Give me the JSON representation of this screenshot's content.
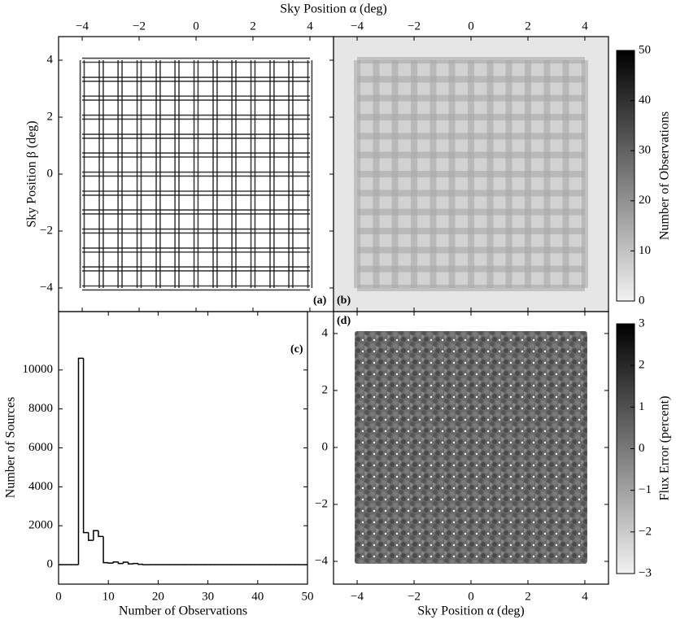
{
  "chart_data": [
    {
      "type": "grid",
      "panel_label": "(a)",
      "x_label": "Sky Position α (deg)",
      "y_label": "Sky Position β (deg)",
      "xlim": [
        -4.83,
        4.83
      ],
      "ylim": [
        -4.83,
        4.83
      ],
      "xticks": [
        {
          "value": -4,
          "label": "−4"
        },
        {
          "value": -2,
          "label": "−2"
        },
        0,
        2,
        4
      ],
      "yticks": [
        {
          "value": -4,
          "label": "−4"
        },
        {
          "value": -2,
          "label": "−2"
        },
        0,
        2,
        4
      ],
      "grid_lines": [
        -4,
        -3.33,
        -2.67,
        -2,
        -1.33,
        -0.67,
        0,
        0.67,
        1.33,
        2,
        2.67,
        3.33,
        4
      ]
    },
    {
      "type": "heatmap",
      "panel_label": "(b)",
      "xlim": [
        -4.83,
        4.83
      ],
      "ylim": [
        -4.83,
        4.83
      ],
      "xticks": [
        {
          "value": -4,
          "label": "−4"
        },
        {
          "value": -2,
          "label": "−2"
        },
        0,
        2,
        4
      ],
      "colorbar": {
        "label": "Number of Observations",
        "lim": [
          0,
          50
        ],
        "ticks": [
          0,
          10,
          20,
          30,
          40,
          50
        ]
      }
    },
    {
      "type": "histogram",
      "panel_label": "(c)",
      "x_label": "Number of Observations",
      "y_label": "Number of Sources",
      "xlim": [
        0,
        50
      ],
      "ylim": [
        -1000,
        13000
      ],
      "xticks": [
        0,
        10,
        20,
        30,
        40,
        50
      ],
      "yticks": [
        0,
        2000,
        4000,
        6000,
        8000,
        10000
      ],
      "bins": [
        0,
        1,
        2,
        3,
        4,
        5,
        6,
        7,
        8,
        9,
        10,
        11,
        12,
        13,
        14,
        15,
        16,
        17,
        18,
        19,
        20,
        21,
        22,
        23,
        24,
        25,
        26,
        27,
        28,
        29,
        30,
        31,
        32,
        33,
        34,
        35,
        36,
        37,
        38,
        39,
        40,
        41,
        42,
        43,
        44,
        45,
        46,
        47,
        48,
        49,
        50
      ],
      "values": [
        0,
        0,
        0,
        0,
        10600,
        1650,
        1250,
        1750,
        1450,
        100,
        80,
        140,
        60,
        130,
        40,
        60,
        20,
        0,
        0,
        0,
        0,
        0,
        0,
        0,
        0,
        0,
        0,
        0,
        0,
        0,
        0,
        0,
        0,
        0,
        0,
        0,
        0,
        0,
        0,
        0,
        0,
        0,
        0,
        0,
        0,
        0,
        0,
        0,
        0,
        0
      ]
    },
    {
      "type": "scatter",
      "panel_label": "(d)",
      "x_label": "Sky Position α (deg)",
      "xlim": [
        -4.83,
        4.83
      ],
      "ylim": [
        -4.8,
        4.77
      ],
      "xticks": [
        {
          "value": -4,
          "label": "−4"
        },
        {
          "value": -2,
          "label": "−2"
        },
        0,
        2,
        4
      ],
      "yticks": [
        {
          "value": -4,
          "label": "−4"
        },
        {
          "value": -2,
          "label": "−2"
        },
        0,
        2,
        4
      ],
      "colorbar": {
        "label": "Flux Error (percent)",
        "lim": [
          -3,
          3
        ],
        "ticks": [
          {
            "value": -3,
            "label": "−3"
          },
          {
            "value": -2,
            "label": "−2"
          },
          {
            "value": -1,
            "label": "−1"
          },
          0,
          1,
          2,
          3
        ]
      }
    }
  ]
}
